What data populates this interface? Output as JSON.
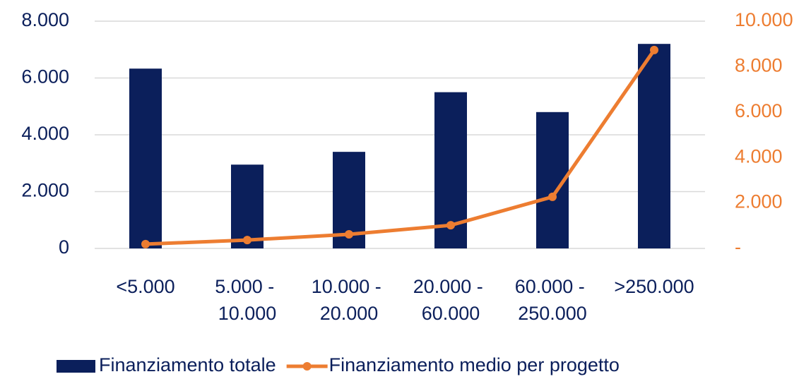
{
  "chart_data": {
    "type": "bar_line",
    "categories": [
      "<5.000",
      "5.000 - 10.000",
      "10.000 - 20.000",
      "20.000 - 60.000",
      "60.000 - 250.000",
      ">250.000"
    ],
    "series": [
      {
        "name": "Finanziamento totale",
        "type": "bar",
        "color": "#0b1f5b",
        "values": [
          6330,
          2950,
          3400,
          5500,
          4800,
          7200
        ]
      },
      {
        "name": "Finanziamento medio per progetto",
        "type": "line",
        "axis": "y2",
        "color": "#ed7d31",
        "values": [
          190,
          370,
          620,
          1020,
          2270,
          8730
        ]
      }
    ],
    "ylim": [
      0,
      8000
    ],
    "yticks": [
      0,
      {
        "value": 2000,
        "label": "2.000"
      },
      {
        "value": 4000,
        "label": "4.000"
      },
      {
        "value": 6000,
        "label": "6.000"
      },
      {
        "value": 8000,
        "label": "8.000"
      }
    ],
    "y2lim": [
      0,
      10000
    ],
    "y2ticks": [
      {
        "value": 0,
        "label": "-"
      },
      {
        "value": 2000,
        "label": "2.000"
      },
      {
        "value": 4000,
        "label": "4.000"
      },
      {
        "value": 6000,
        "label": "6.000"
      },
      {
        "value": 8000,
        "label": "8.000"
      },
      {
        "value": 10000,
        "label": "10.000"
      }
    ],
    "grid": true,
    "legend": "bottom"
  }
}
